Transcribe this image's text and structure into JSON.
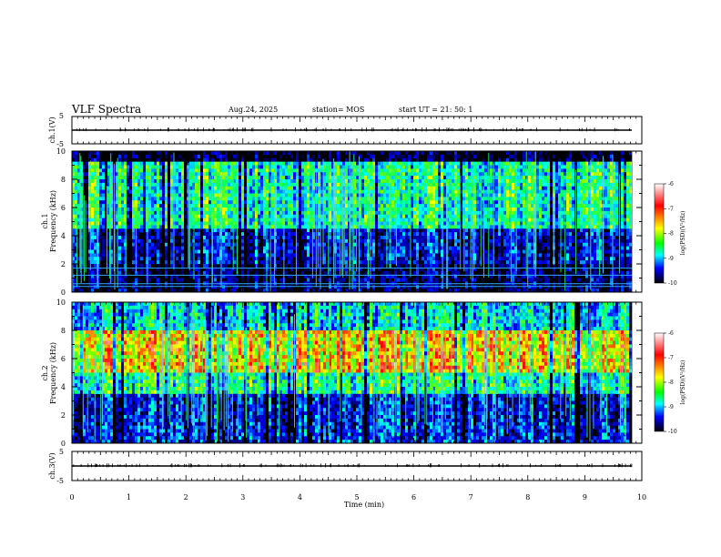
{
  "header": {
    "title": "VLF Spectra",
    "date": "Aug.24, 2025",
    "station": "station= MOS",
    "start": "start UT = 21: 50: 1"
  },
  "colorbar": {
    "label": "log(PSD)(V²/Hz)",
    "ticks": [
      "-6",
      "-7",
      "-8",
      "-9",
      "-10"
    ],
    "colors": [
      "#ffffff",
      "#ff0000",
      "#ffff00",
      "#00ff00",
      "#00ffff",
      "#0000ff",
      "#000000"
    ]
  },
  "chart_data": [
    {
      "type": "line",
      "name": "ch.1 waveform",
      "ylabel": "ch.1(V)",
      "ylim": [
        -5,
        5
      ],
      "yticks": [
        "5",
        "-5"
      ],
      "xlim": [
        0,
        10
      ],
      "x": [
        0,
        9.83
      ],
      "y": [
        0,
        0
      ]
    },
    {
      "type": "heatmap",
      "ylabel": "ch.1\nFrequency (kHz)",
      "ylabel_lines": [
        "ch.1",
        "Frequency (kHz)"
      ],
      "ylim": [
        0,
        10
      ],
      "yticks": [
        "0",
        "2",
        "4",
        "6",
        "8",
        "10"
      ],
      "xlim": [
        0,
        9.83
      ],
      "z_range": [
        -10,
        -6
      ],
      "band_profile": [
        {
          "f0": 0,
          "f1": 2,
          "level": -9.8
        },
        {
          "f0": 2,
          "f1": 4.5,
          "level": -9.4
        },
        {
          "f0": 4.5,
          "f1": 9.3,
          "level": -8.3
        },
        {
          "f0": 9.3,
          "f1": 10,
          "level": -10
        }
      ],
      "horizontal_lines_khz": [
        0.4,
        0.6,
        1.2,
        1.7
      ]
    },
    {
      "type": "heatmap",
      "ylabel": "ch.2\nFrequency (kHz)",
      "ylabel_lines": [
        "ch.2",
        "Frequency (kHz)"
      ],
      "ylim": [
        0,
        10
      ],
      "yticks": [
        "0",
        "2",
        "4",
        "6",
        "8",
        "10"
      ],
      "xlim": [
        0,
        9.83
      ],
      "z_range": [
        -10,
        -6
      ],
      "band_profile": [
        {
          "f0": 0,
          "f1": 1.5,
          "level": -9.2
        },
        {
          "f0": 1.5,
          "f1": 3.5,
          "level": -9.3
        },
        {
          "f0": 3.5,
          "f1": 5,
          "level": -8.2
        },
        {
          "f0": 5,
          "f1": 8,
          "level": -7.2
        },
        {
          "f0": 8,
          "f1": 10,
          "level": -8.5
        }
      ]
    },
    {
      "type": "line",
      "name": "ch.3 waveform",
      "ylabel": "ch.3(V)",
      "ylim": [
        -5,
        5
      ],
      "yticks": [
        "5",
        "-5"
      ],
      "xlim": [
        0,
        10
      ],
      "x": [
        0,
        9.83
      ],
      "y": [
        0,
        0
      ]
    }
  ],
  "xaxis": {
    "label": "Time (min)",
    "ticks": [
      "0",
      "1",
      "2",
      "3",
      "4",
      "5",
      "6",
      "7",
      "8",
      "9",
      "10"
    ],
    "range": [
      0,
      10
    ]
  }
}
